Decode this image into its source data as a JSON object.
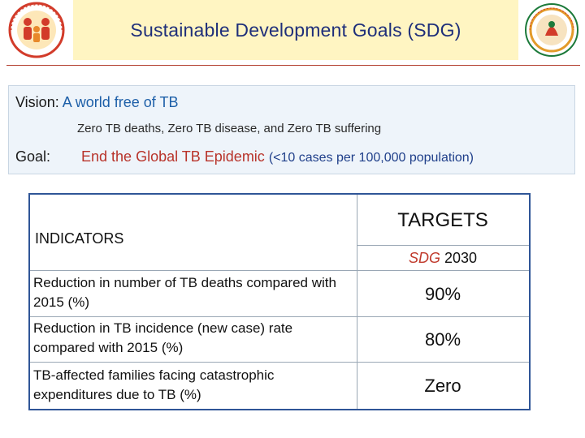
{
  "header": {
    "title": "Sustainable Development Goals (SDG)",
    "colors": {
      "band": "#f3c21a",
      "title": "#1f2f7a",
      "rule": "#b23a2a"
    }
  },
  "vision": {
    "label": "Vision:",
    "value": "A world free of TB",
    "subtext": "Zero TB deaths, Zero TB disease, and Zero TB suffering"
  },
  "goal": {
    "label": "Goal:",
    "value": "End the Global TB Epidemic",
    "detail": "(<10 cases per 100,000 population)"
  },
  "table": {
    "indicators_header": "INDICATORS",
    "targets_header": "TARGETS",
    "sdg_label": "SDG",
    "year": "2030",
    "rows": [
      {
        "indicator": "Reduction in number of TB deaths compared with 2015 (%)",
        "target": "90%"
      },
      {
        "indicator": "Reduction in TB incidence (new case) rate compared with 2015 (%)",
        "target": "80%"
      },
      {
        "indicator": "TB-affected families facing catastrophic expenditures due to TB (%)",
        "target": "Zero"
      }
    ]
  }
}
